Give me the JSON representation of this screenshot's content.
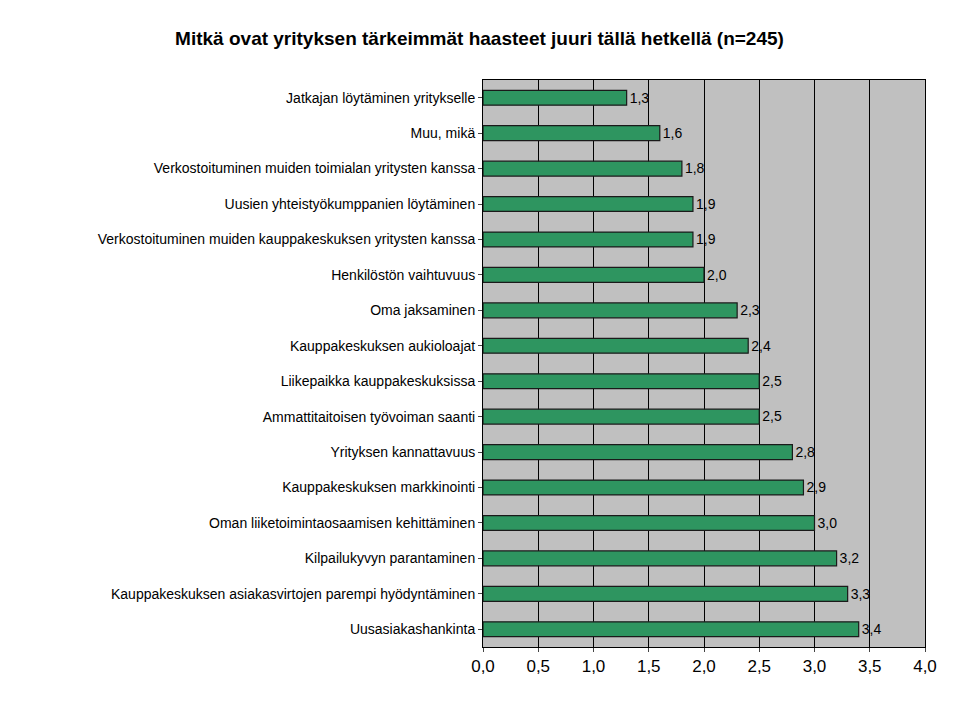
{
  "chart_data": {
    "type": "bar",
    "orientation": "horizontal",
    "title": "Mitkä ovat yrityksen tärkeimmät haasteet juuri tällä hetkellä (n=245)",
    "categories": [
      "Jatkajan löytäminen yritykselle",
      "Muu, mikä",
      "Verkostoituminen muiden toimialan yritysten kanssa",
      "Uusien yhteistyökumppanien löytäminen",
      "Verkostoituminen muiden kauppakeskuksen yritysten kanssa",
      "Henkilöstön vaihtuvuus",
      "Oma jaksaminen",
      "Kauppakeskuksen aukioloajat",
      "Liikepaikka kauppakeskuksissa",
      "Ammattitaitoisen työvoiman saanti",
      "Yrityksen kannattavuus",
      "Kauppakeskuksen markkinointi",
      "Oman liiketoimintaosaamisen kehittäminen",
      "Kilpailukyvyn parantaminen",
      "Kauppakeskuksen asiakasvirtojen parempi hyödyntäminen",
      "Uusasiakashankinta"
    ],
    "values": [
      1.3,
      1.6,
      1.8,
      1.9,
      1.9,
      2.0,
      2.3,
      2.4,
      2.5,
      2.5,
      2.8,
      2.9,
      3.0,
      3.2,
      3.3,
      3.4
    ],
    "value_labels": [
      "1,3",
      "1,6",
      "1,8",
      "1,9",
      "1,9",
      "2,0",
      "2,3",
      "2,4",
      "2,5",
      "2,5",
      "2,8",
      "2,9",
      "3,0",
      "3,2",
      "3,3",
      "3,4"
    ],
    "data_labels": true,
    "color": "#2e9560",
    "xlim": [
      0,
      4
    ],
    "xticks": [
      {
        "value": 0,
        "label": "0,0"
      },
      {
        "value": 0.5,
        "label": "0,5"
      },
      {
        "value": 1,
        "label": "1,0"
      },
      {
        "value": 1.5,
        "label": "1,5"
      },
      {
        "value": 2,
        "label": "2,0"
      },
      {
        "value": 2.5,
        "label": "2,5"
      },
      {
        "value": 3,
        "label": "3,0"
      },
      {
        "value": 3.5,
        "label": "3,5"
      },
      {
        "value": 4,
        "label": "4,0"
      }
    ],
    "grid": true
  }
}
